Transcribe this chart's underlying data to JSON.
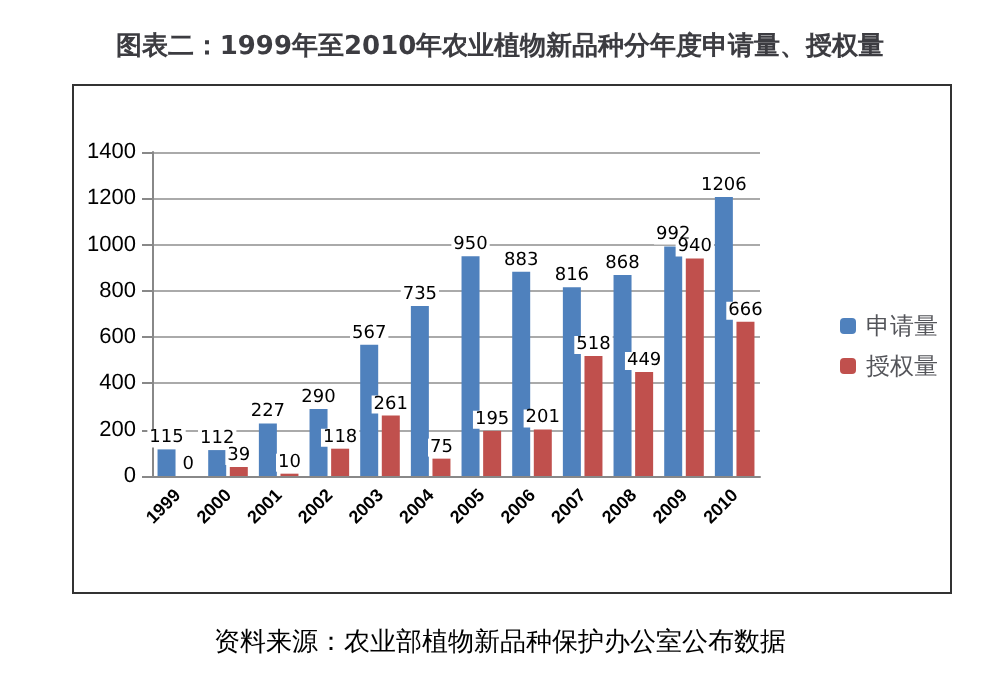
{
  "chart_data": {
    "type": "bar",
    "title": "图表二：1999年至2010年农业植物新品种分年度申请量、授权量",
    "categories": [
      "1999",
      "2000",
      "2001",
      "2002",
      "2003",
      "2004",
      "2005",
      "2006",
      "2007",
      "2008",
      "2009",
      "2010"
    ],
    "series": [
      {
        "name": "申请量",
        "color": "#4f81bd",
        "values": [
          115,
          112,
          227,
          290,
          567,
          735,
          950,
          883,
          816,
          868,
          992,
          1206
        ]
      },
      {
        "name": "授权量",
        "color": "#c0504d",
        "values": [
          0,
          39,
          10,
          118,
          261,
          75,
          195,
          201,
          518,
          449,
          940,
          666
        ]
      }
    ],
    "ylim": [
      0,
      1400
    ],
    "yticks": [
      0,
      200,
      400,
      600,
      800,
      1000,
      1200,
      1400
    ],
    "grid": "y",
    "legend": "right",
    "data_labels": true,
    "annotations": [
      "资料来源：农业部植物新品种保护办公室公布数据"
    ]
  }
}
